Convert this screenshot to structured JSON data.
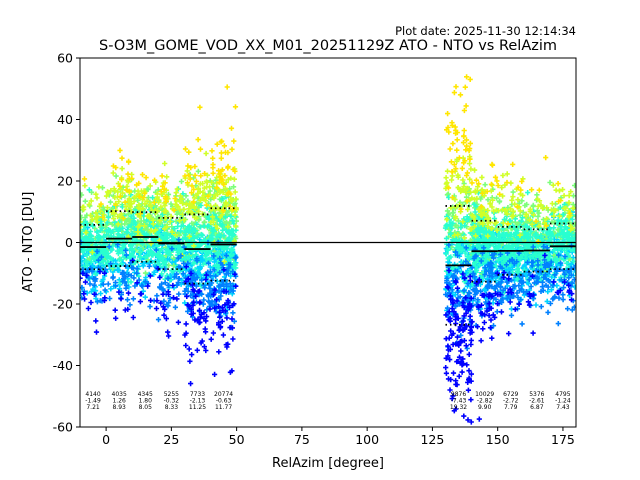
{
  "chart_data": {
    "type": "scatter",
    "plot_date": "Plot date: 2025-11-30 12:14:34",
    "title": "S-O3M_GOME_VOD_XX_M01_20251129Z ATO - NTO vs RelAzim",
    "xlabel": "RelAzim [degree]",
    "ylabel": "ATO - NTO [DU]",
    "xlim": [
      -10,
      180
    ],
    "ylim": [
      -60,
      60
    ],
    "xticks": [
      0,
      25,
      50,
      75,
      100,
      125,
      150,
      175
    ],
    "yticks": [
      -60,
      -40,
      -20,
      0,
      20,
      40,
      60
    ],
    "grid": false,
    "zero_line": 0,
    "bins": [
      {
        "x0": -10,
        "x1": 0,
        "mean": -1.49,
        "std": 7.21,
        "count": "4140",
        "mean_label": "-1.49",
        "std_label": "7.21"
      },
      {
        "x0": 0,
        "x1": 10,
        "mean": 1.26,
        "std": 8.93,
        "count": "4035",
        "mean_label": "1.26",
        "std_label": "8.93"
      },
      {
        "x0": 10,
        "x1": 20,
        "mean": 1.8,
        "std": 8.05,
        "count": "4345",
        "mean_label": "1.80",
        "std_label": "8.05"
      },
      {
        "x0": 20,
        "x1": 30,
        "mean": -0.32,
        "std": 8.33,
        "count": "5255",
        "mean_label": "-0.32",
        "std_label": "8.33"
      },
      {
        "x0": 30,
        "x1": 40,
        "mean": -2.13,
        "std": 11.25,
        "count": "7733",
        "mean_label": "-2.13",
        "std_label": "11.25"
      },
      {
        "x0": 40,
        "x1": 50,
        "mean": -0.63,
        "std": 11.77,
        "count": "20774",
        "mean_label": "-0.63",
        "std_label": "11.77"
      },
      {
        "x0": 130,
        "x1": 140,
        "mean": -7.43,
        "std": 19.32,
        "count": "9876",
        "mean_label": "-7.43",
        "std_label": "19.32"
      },
      {
        "x0": 140,
        "x1": 150,
        "mean": -2.82,
        "std": 9.9,
        "count": "10029",
        "mean_label": "-2.82",
        "std_label": "9.90"
      },
      {
        "x0": 150,
        "x1": 160,
        "mean": -2.72,
        "std": 7.79,
        "count": "6729",
        "mean_label": "-2.72",
        "std_label": "7.79"
      },
      {
        "x0": 160,
        "x1": 170,
        "mean": -2.61,
        "std": 6.87,
        "count": "5376",
        "mean_label": "-2.61",
        "std_label": "6.87"
      },
      {
        "x0": 170,
        "x1": 180,
        "mean": -1.24,
        "std": 7.43,
        "count": "4795",
        "mean_label": "-1.24",
        "std_label": "7.43"
      }
    ],
    "point_palette": [
      "#0000ff",
      "#0080ff",
      "#00d4ff",
      "#28ffd0",
      "#7cff79",
      "#d0ff28",
      "#ffe600"
    ],
    "marker": "plus"
  }
}
